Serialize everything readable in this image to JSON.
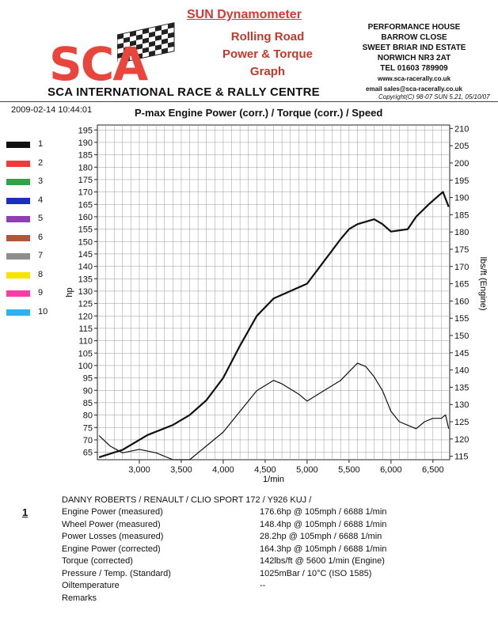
{
  "header": {
    "sun_title": "SUN Dynamometer",
    "graph_type_1": "Rolling Road",
    "graph_type_2": "Power & Torque",
    "graph_type_3": "Graph",
    "logo_text": "SCA",
    "company_name": "SCA INTERNATIONAL RACE & RALLY CENTRE",
    "address": [
      "PERFORMANCE HOUSE",
      "BARROW CLOSE",
      "SWEET BRIAR IND ESTATE",
      "NORWICH NR3 2AT",
      "TEL 01603 789909",
      "www.sca-racerally.co.uk",
      "email sales@sca-racerally.co.uk"
    ],
    "copyright": "Copyright(C) 98-07 SUN 5.21, 05/10/07",
    "datetime": "2009-02-14 10:44:01",
    "brand_color": "#e8463c"
  },
  "legend": [
    {
      "label": "1",
      "color": "#111111"
    },
    {
      "label": "2",
      "color": "#ef3b3b"
    },
    {
      "label": "3",
      "color": "#2aa64a"
    },
    {
      "label": "4",
      "color": "#1b2fbf"
    },
    {
      "label": "5",
      "color": "#8e3fb0"
    },
    {
      "label": "6",
      "color": "#b0563a"
    },
    {
      "label": "7",
      "color": "#8e8e8e"
    },
    {
      "label": "8",
      "color": "#f5e400"
    },
    {
      "label": "9",
      "color": "#f53ea8"
    },
    {
      "label": "10",
      "color": "#2fb1ee"
    }
  ],
  "chart_data": {
    "type": "line",
    "title": "P-max Engine Power (corr.) / Torque (corr.) / Speed",
    "xlabel": "1/min",
    "ylabel": "hp",
    "y2label": "lbs/ft (Engine)",
    "xlim": [
      2500,
      6700
    ],
    "ylim": [
      62,
      197
    ],
    "y2lim": [
      114,
      211
    ],
    "x_ticks": [
      3000,
      4000,
      5000,
      6000
    ],
    "x_tick_labels": [
      "3,000",
      "4,000",
      "5,000",
      "6,000"
    ],
    "x_minor_ticks": [
      3500,
      4500,
      5500,
      6500
    ],
    "x_minor_tick_labels": [
      "3,500",
      "4,500",
      "5,500",
      "6,500"
    ],
    "y_ticks": [
      65,
      70,
      75,
      80,
      85,
      90,
      95,
      100,
      105,
      110,
      115,
      120,
      125,
      130,
      135,
      140,
      145,
      150,
      155,
      160,
      165,
      170,
      175,
      180,
      185,
      190,
      195
    ],
    "y2_ticks": [
      115,
      120,
      125,
      130,
      135,
      140,
      145,
      150,
      155,
      160,
      165,
      170,
      175,
      180,
      185,
      190,
      195,
      200,
      205,
      210
    ],
    "grid": true,
    "series": [
      {
        "name": "Engine Power (corrected)",
        "axis": "left",
        "color": "#111111",
        "x": [
          2520,
          2800,
          3100,
          3400,
          3600,
          3800,
          4000,
          4200,
          4400,
          4600,
          4800,
          5000,
          5200,
          5400,
          5500,
          5600,
          5800,
          5900,
          6000,
          6200,
          6300,
          6450,
          6550,
          6620,
          6688
        ],
        "values": [
          63,
          66,
          72,
          76,
          80,
          86,
          95,
          108,
          120,
          127,
          130,
          133,
          142,
          151,
          155,
          157,
          159,
          157,
          154,
          155,
          160,
          165,
          168,
          170,
          164
        ]
      },
      {
        "name": "Torque (corrected)",
        "axis": "right",
        "color": "#111111",
        "x": [
          2520,
          2650,
          2800,
          3000,
          3200,
          3400,
          3600,
          3800,
          4000,
          4200,
          4400,
          4600,
          4700,
          4900,
          5000,
          5200,
          5400,
          5600,
          5700,
          5800,
          5900,
          6000,
          6100,
          6200,
          6300,
          6400,
          6500,
          6600,
          6650,
          6688
        ],
        "values": [
          121,
          118,
          116,
          117,
          116,
          114,
          114,
          118,
          122,
          128,
          134,
          137,
          136,
          133,
          131,
          134,
          137,
          142,
          141,
          138,
          134,
          128,
          125,
          124,
          123,
          125,
          126,
          126,
          127,
          123
        ]
      }
    ]
  },
  "report": {
    "index": "1",
    "vehicle": "DANNY ROBERTS / RENAULT  / CLIO SPORT 172 / Y926 KUJ /",
    "rows": [
      {
        "label": "Engine Power (measured)",
        "value": "176.6hp @ 105mph / 6688 1/min"
      },
      {
        "label": "Wheel Power (measured)",
        "value": "148.4hp @ 105mph / 6688 1/min"
      },
      {
        "label": "Power Losses (measured)",
        "value": "28.2hp @ 105mph / 6688 1/min"
      },
      {
        "label": "Engine Power (corrected)",
        "value": "164.3hp @ 105mph / 6688 1/min"
      },
      {
        "label": "Torque (corrected)",
        "value": "142lbs/ft @ 5600 1/min (Engine)"
      },
      {
        "label": "Pressure / Temp. (Standard)",
        "value": "1025mBar / 10°C   (ISO 1585)"
      },
      {
        "label": "Oiltemperature",
        "value": "--"
      },
      {
        "label": "Remarks",
        "value": ""
      }
    ]
  }
}
